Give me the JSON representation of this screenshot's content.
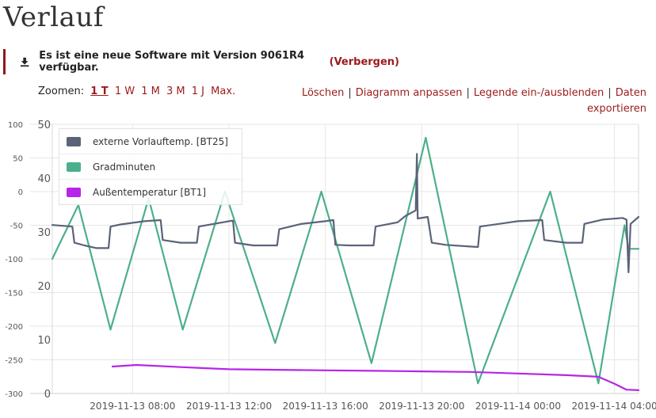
{
  "page": {
    "title": "Verlauf"
  },
  "notice": {
    "message": "Es ist eine neue Software mit Version 9061R4 verfügbar.",
    "hide_label": "(Verbergen)"
  },
  "zoom": {
    "label": "Zoomen:",
    "options": [
      "1 T",
      "1 W",
      "1 M",
      "3 M",
      "1 J",
      "Max."
    ],
    "active": "1 T"
  },
  "actions": {
    "delete": "Löschen",
    "adjust": "Diagramm anpassen",
    "legend_toggle": "Legende ein-/ausblenden",
    "export": "Daten exportieren",
    "separator": "|"
  },
  "colors": {
    "accent": "#9b1b1b",
    "vorlauf": "#5b6378",
    "gradminuten": "#4caf8c",
    "aussen": "#b625e8"
  },
  "chart_data": {
    "type": "line",
    "title": "",
    "grid": true,
    "legend_position": "top-left",
    "x_axis": {
      "type": "datetime",
      "start": "2019-11-13T04:40",
      "end": "2019-11-14T05:00",
      "tick_labels": [
        "2019-11-13 08:00",
        "2019-11-13 12:00",
        "2019-11-13 16:00",
        "2019-11-13 20:00",
        "2019-11-14 00:00",
        "2019-11-14 04:00"
      ],
      "tick_times": [
        "2019-11-13T08:00",
        "2019-11-13T12:00",
        "2019-11-13T16:00",
        "2019-11-13T20:00",
        "2019-11-14T00:00",
        "2019-11-14T04:00"
      ]
    },
    "y_axes": [
      {
        "id": "left_outer",
        "range": [
          -300,
          100
        ],
        "ticks": [
          100,
          50,
          0,
          -50,
          -100,
          -150,
          -200,
          -250,
          -300
        ]
      },
      {
        "id": "left_inner",
        "range": [
          0,
          50
        ],
        "ticks": [
          50,
          40,
          30,
          20,
          10,
          0
        ]
      }
    ],
    "series": [
      {
        "name": "externe Vorlauftemp. [BT25]",
        "color": "#5b6378",
        "axis": "left_inner",
        "points": [
          [
            "2019-11-13T04:40",
            31.3
          ],
          [
            "2019-11-13T05:30",
            31.0
          ],
          [
            "2019-11-13T05:35",
            28.0
          ],
          [
            "2019-11-13T06:00",
            27.5
          ],
          [
            "2019-11-13T06:30",
            27.0
          ],
          [
            "2019-11-13T07:00",
            27.0
          ],
          [
            "2019-11-13T07:05",
            31.0
          ],
          [
            "2019-11-13T07:30",
            31.4
          ],
          [
            "2019-11-13T08:30",
            32.0
          ],
          [
            "2019-11-13T09:10",
            32.2
          ],
          [
            "2019-11-13T09:15",
            28.5
          ],
          [
            "2019-11-13T10:00",
            28.0
          ],
          [
            "2019-11-13T10:40",
            28.0
          ],
          [
            "2019-11-13T10:45",
            31.0
          ],
          [
            "2019-11-13T12:00",
            32.0
          ],
          [
            "2019-11-13T12:10",
            32.1
          ],
          [
            "2019-11-13T12:15",
            28.0
          ],
          [
            "2019-11-13T13:00",
            27.5
          ],
          [
            "2019-11-13T14:00",
            27.5
          ],
          [
            "2019-11-13T14:05",
            30.5
          ],
          [
            "2019-11-13T15:00",
            31.5
          ],
          [
            "2019-11-13T16:00",
            32.0
          ],
          [
            "2019-11-13T16:20",
            32.2
          ],
          [
            "2019-11-13T16:25",
            27.6
          ],
          [
            "2019-11-13T17:00",
            27.5
          ],
          [
            "2019-11-13T18:00",
            27.5
          ],
          [
            "2019-11-13T18:05",
            31.0
          ],
          [
            "2019-11-13T19:00",
            31.8
          ],
          [
            "2019-11-13T19:20",
            33.0
          ],
          [
            "2019-11-13T19:45",
            34.0
          ],
          [
            "2019-11-13T19:48",
            44.5
          ],
          [
            "2019-11-13T19:50",
            32.5
          ],
          [
            "2019-11-13T20:15",
            32.8
          ],
          [
            "2019-11-13T20:25",
            28.0
          ],
          [
            "2019-11-13T21:00",
            27.6
          ],
          [
            "2019-11-13T22:00",
            27.3
          ],
          [
            "2019-11-13T22:20",
            27.2
          ],
          [
            "2019-11-13T22:25",
            31.0
          ],
          [
            "2019-11-14T00:00",
            32.0
          ],
          [
            "2019-11-14T01:00",
            32.2
          ],
          [
            "2019-11-14T01:05",
            28.5
          ],
          [
            "2019-11-14T02:00",
            28.0
          ],
          [
            "2019-11-14T02:40",
            28.0
          ],
          [
            "2019-11-14T02:45",
            31.5
          ],
          [
            "2019-11-14T03:30",
            32.3
          ],
          [
            "2019-11-14T04:20",
            32.6
          ],
          [
            "2019-11-14T04:30",
            32.3
          ],
          [
            "2019-11-14T04:35",
            22.5
          ],
          [
            "2019-11-14T04:40",
            31.5
          ],
          [
            "2019-11-14T05:00",
            32.8
          ]
        ]
      },
      {
        "name": "Gradminuten",
        "color": "#4caf8c",
        "axis": "left_outer",
        "points": [
          [
            "2019-11-13T04:40",
            -100
          ],
          [
            "2019-11-13T05:45",
            -20
          ],
          [
            "2019-11-13T07:05",
            -205
          ],
          [
            "2019-11-13T08:40",
            -10
          ],
          [
            "2019-11-13T10:05",
            -205
          ],
          [
            "2019-11-13T11:50",
            0
          ],
          [
            "2019-11-13T13:55",
            -225
          ],
          [
            "2019-11-13T15:50",
            0
          ],
          [
            "2019-11-13T17:55",
            -255
          ],
          [
            "2019-11-13T20:10",
            80
          ],
          [
            "2019-11-13T22:20",
            -285
          ],
          [
            "2019-11-14T01:20",
            0
          ],
          [
            "2019-11-14T03:20",
            -285
          ],
          [
            "2019-11-14T04:25",
            -50
          ],
          [
            "2019-11-14T04:35",
            -85
          ],
          [
            "2019-11-14T05:00",
            -85
          ]
        ]
      },
      {
        "name": "Außentemperatur [BT1]",
        "color": "#b625e8",
        "axis": "left_inner",
        "points": [
          [
            "2019-11-13T07:10",
            5.0
          ],
          [
            "2019-11-13T08:10",
            5.3
          ],
          [
            "2019-11-13T10:00",
            4.9
          ],
          [
            "2019-11-13T12:00",
            4.5
          ],
          [
            "2019-11-13T14:00",
            4.4
          ],
          [
            "2019-11-13T16:00",
            4.3
          ],
          [
            "2019-11-13T18:00",
            4.2
          ],
          [
            "2019-11-13T20:00",
            4.1
          ],
          [
            "2019-11-13T22:00",
            4.0
          ],
          [
            "2019-11-14T00:00",
            3.7
          ],
          [
            "2019-11-14T02:00",
            3.4
          ],
          [
            "2019-11-14T03:20",
            3.1
          ],
          [
            "2019-11-14T04:00",
            1.8
          ],
          [
            "2019-11-14T04:30",
            0.7
          ],
          [
            "2019-11-14T05:00",
            0.6
          ]
        ]
      }
    ]
  }
}
